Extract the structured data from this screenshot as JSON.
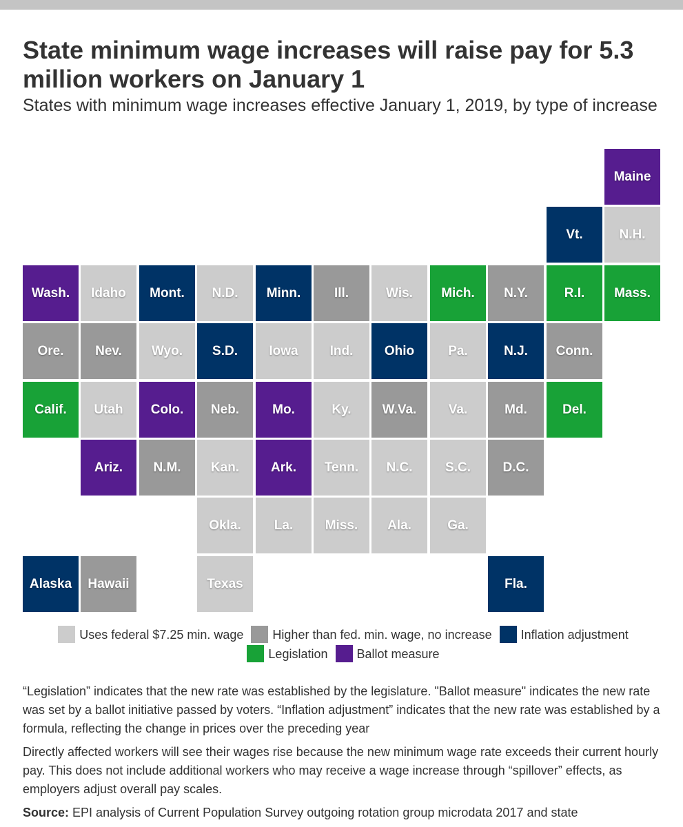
{
  "header": {
    "title": "State minimum wage increases will raise pay for 5.3 million workers on January 1",
    "subtitle": "States with minimum wage increases effective January 1, 2019, by type of increase"
  },
  "colors": {
    "federal": "#cccccc",
    "higher": "#999999",
    "inflation": "#003366",
    "legislation": "#18a237",
    "ballot": "#561d8f"
  },
  "legend": [
    {
      "key": "federal",
      "label": "Uses federal $7.25 min. wage"
    },
    {
      "key": "higher",
      "label": "Higher than fed. min. wage, no increase"
    },
    {
      "key": "inflation",
      "label": "Inflation adjustment"
    },
    {
      "key": "legislation",
      "label": "Legislation"
    },
    {
      "key": "ballot",
      "label": "Ballot measure"
    }
  ],
  "states": [
    {
      "name": "Maine",
      "cat": "ballot",
      "row": 0,
      "col": 10
    },
    {
      "name": "Vt.",
      "cat": "inflation",
      "row": 1,
      "col": 9
    },
    {
      "name": "N.H.",
      "cat": "federal",
      "row": 1,
      "col": 10
    },
    {
      "name": "Wash.",
      "cat": "ballot",
      "row": 2,
      "col": 0
    },
    {
      "name": "Idaho",
      "cat": "federal",
      "row": 2,
      "col": 1
    },
    {
      "name": "Mont.",
      "cat": "inflation",
      "row": 2,
      "col": 2
    },
    {
      "name": "N.D.",
      "cat": "federal",
      "row": 2,
      "col": 3
    },
    {
      "name": "Minn.",
      "cat": "inflation",
      "row": 2,
      "col": 4
    },
    {
      "name": "Ill.",
      "cat": "higher",
      "row": 2,
      "col": 5
    },
    {
      "name": "Wis.",
      "cat": "federal",
      "row": 2,
      "col": 6
    },
    {
      "name": "Mich.",
      "cat": "legislation",
      "row": 2,
      "col": 7
    },
    {
      "name": "N.Y.",
      "cat": "higher",
      "row": 2,
      "col": 8
    },
    {
      "name": "R.I.",
      "cat": "legislation",
      "row": 2,
      "col": 9
    },
    {
      "name": "Mass.",
      "cat": "legislation",
      "row": 2,
      "col": 10
    },
    {
      "name": "Ore.",
      "cat": "higher",
      "row": 3,
      "col": 0
    },
    {
      "name": "Nev.",
      "cat": "higher",
      "row": 3,
      "col": 1
    },
    {
      "name": "Wyo.",
      "cat": "federal",
      "row": 3,
      "col": 2
    },
    {
      "name": "S.D.",
      "cat": "inflation",
      "row": 3,
      "col": 3
    },
    {
      "name": "Iowa",
      "cat": "federal",
      "row": 3,
      "col": 4
    },
    {
      "name": "Ind.",
      "cat": "federal",
      "row": 3,
      "col": 5
    },
    {
      "name": "Ohio",
      "cat": "inflation",
      "row": 3,
      "col": 6
    },
    {
      "name": "Pa.",
      "cat": "federal",
      "row": 3,
      "col": 7
    },
    {
      "name": "N.J.",
      "cat": "inflation",
      "row": 3,
      "col": 8
    },
    {
      "name": "Conn.",
      "cat": "higher",
      "row": 3,
      "col": 9
    },
    {
      "name": "Calif.",
      "cat": "legislation",
      "row": 4,
      "col": 0
    },
    {
      "name": "Utah",
      "cat": "federal",
      "row": 4,
      "col": 1
    },
    {
      "name": "Colo.",
      "cat": "ballot",
      "row": 4,
      "col": 2
    },
    {
      "name": "Neb.",
      "cat": "higher",
      "row": 4,
      "col": 3
    },
    {
      "name": "Mo.",
      "cat": "ballot",
      "row": 4,
      "col": 4
    },
    {
      "name": "Ky.",
      "cat": "federal",
      "row": 4,
      "col": 5
    },
    {
      "name": "W.Va.",
      "cat": "higher",
      "row": 4,
      "col": 6
    },
    {
      "name": "Va.",
      "cat": "federal",
      "row": 4,
      "col": 7
    },
    {
      "name": "Md.",
      "cat": "higher",
      "row": 4,
      "col": 8
    },
    {
      "name": "Del.",
      "cat": "legislation",
      "row": 4,
      "col": 9
    },
    {
      "name": "Ariz.",
      "cat": "ballot",
      "row": 5,
      "col": 1
    },
    {
      "name": "N.M.",
      "cat": "higher",
      "row": 5,
      "col": 2
    },
    {
      "name": "Kan.",
      "cat": "federal",
      "row": 5,
      "col": 3
    },
    {
      "name": "Ark.",
      "cat": "ballot",
      "row": 5,
      "col": 4
    },
    {
      "name": "Tenn.",
      "cat": "federal",
      "row": 5,
      "col": 5
    },
    {
      "name": "N.C.",
      "cat": "federal",
      "row": 5,
      "col": 6
    },
    {
      "name": "S.C.",
      "cat": "federal",
      "row": 5,
      "col": 7
    },
    {
      "name": "D.C.",
      "cat": "higher",
      "row": 5,
      "col": 8
    },
    {
      "name": "Okla.",
      "cat": "federal",
      "row": 6,
      "col": 3
    },
    {
      "name": "La.",
      "cat": "federal",
      "row": 6,
      "col": 4
    },
    {
      "name": "Miss.",
      "cat": "federal",
      "row": 6,
      "col": 5
    },
    {
      "name": "Ala.",
      "cat": "federal",
      "row": 6,
      "col": 6
    },
    {
      "name": "Ga.",
      "cat": "federal",
      "row": 6,
      "col": 7
    },
    {
      "name": "Alaska",
      "cat": "inflation",
      "row": 7,
      "col": 0
    },
    {
      "name": "Hawaii",
      "cat": "higher",
      "row": 7,
      "col": 1
    },
    {
      "name": "Texas",
      "cat": "federal",
      "row": 7,
      "col": 3
    },
    {
      "name": "Fla.",
      "cat": "inflation",
      "row": 7,
      "col": 8
    }
  ],
  "notes": {
    "definitions": "“Legislation” indicates that the new rate was established by the legislature. \"Ballot measure\" indicates the new rate was set by a ballot initiative passed by voters. “Inflation adjustment” indicates that the new rate was established by a formula, reflecting the change in prices over the preceding year",
    "affected": "Directly affected workers will see their wages rise because the new minimum wage rate exceeds their current hourly pay. This does not include additional workers who may receive a wage increase through “spillover” effects, as employers adjust overall pay scales.",
    "source_label": "Source:",
    "source_text": "EPI analysis of Current Population Survey outgoing rotation group microdata 2017 and state"
  }
}
